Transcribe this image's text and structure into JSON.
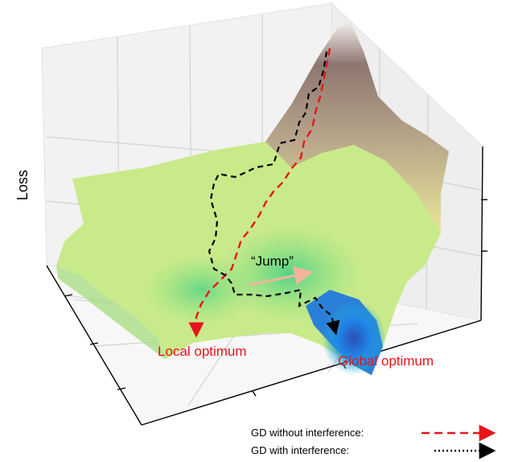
{
  "axis": {
    "z_label": "Loss"
  },
  "annotations": {
    "jump": "“Jump”",
    "local_optimum": "Local optimum",
    "global_optimum": "Global optimum"
  },
  "legend": {
    "without": "GD  without interference:",
    "with": "GD  with  interference:"
  },
  "colors": {
    "red_path": "#e8141b",
    "black_path": "#000000",
    "jump_arrow": "#f2b59c",
    "annotation_text": "#e8141b"
  }
}
